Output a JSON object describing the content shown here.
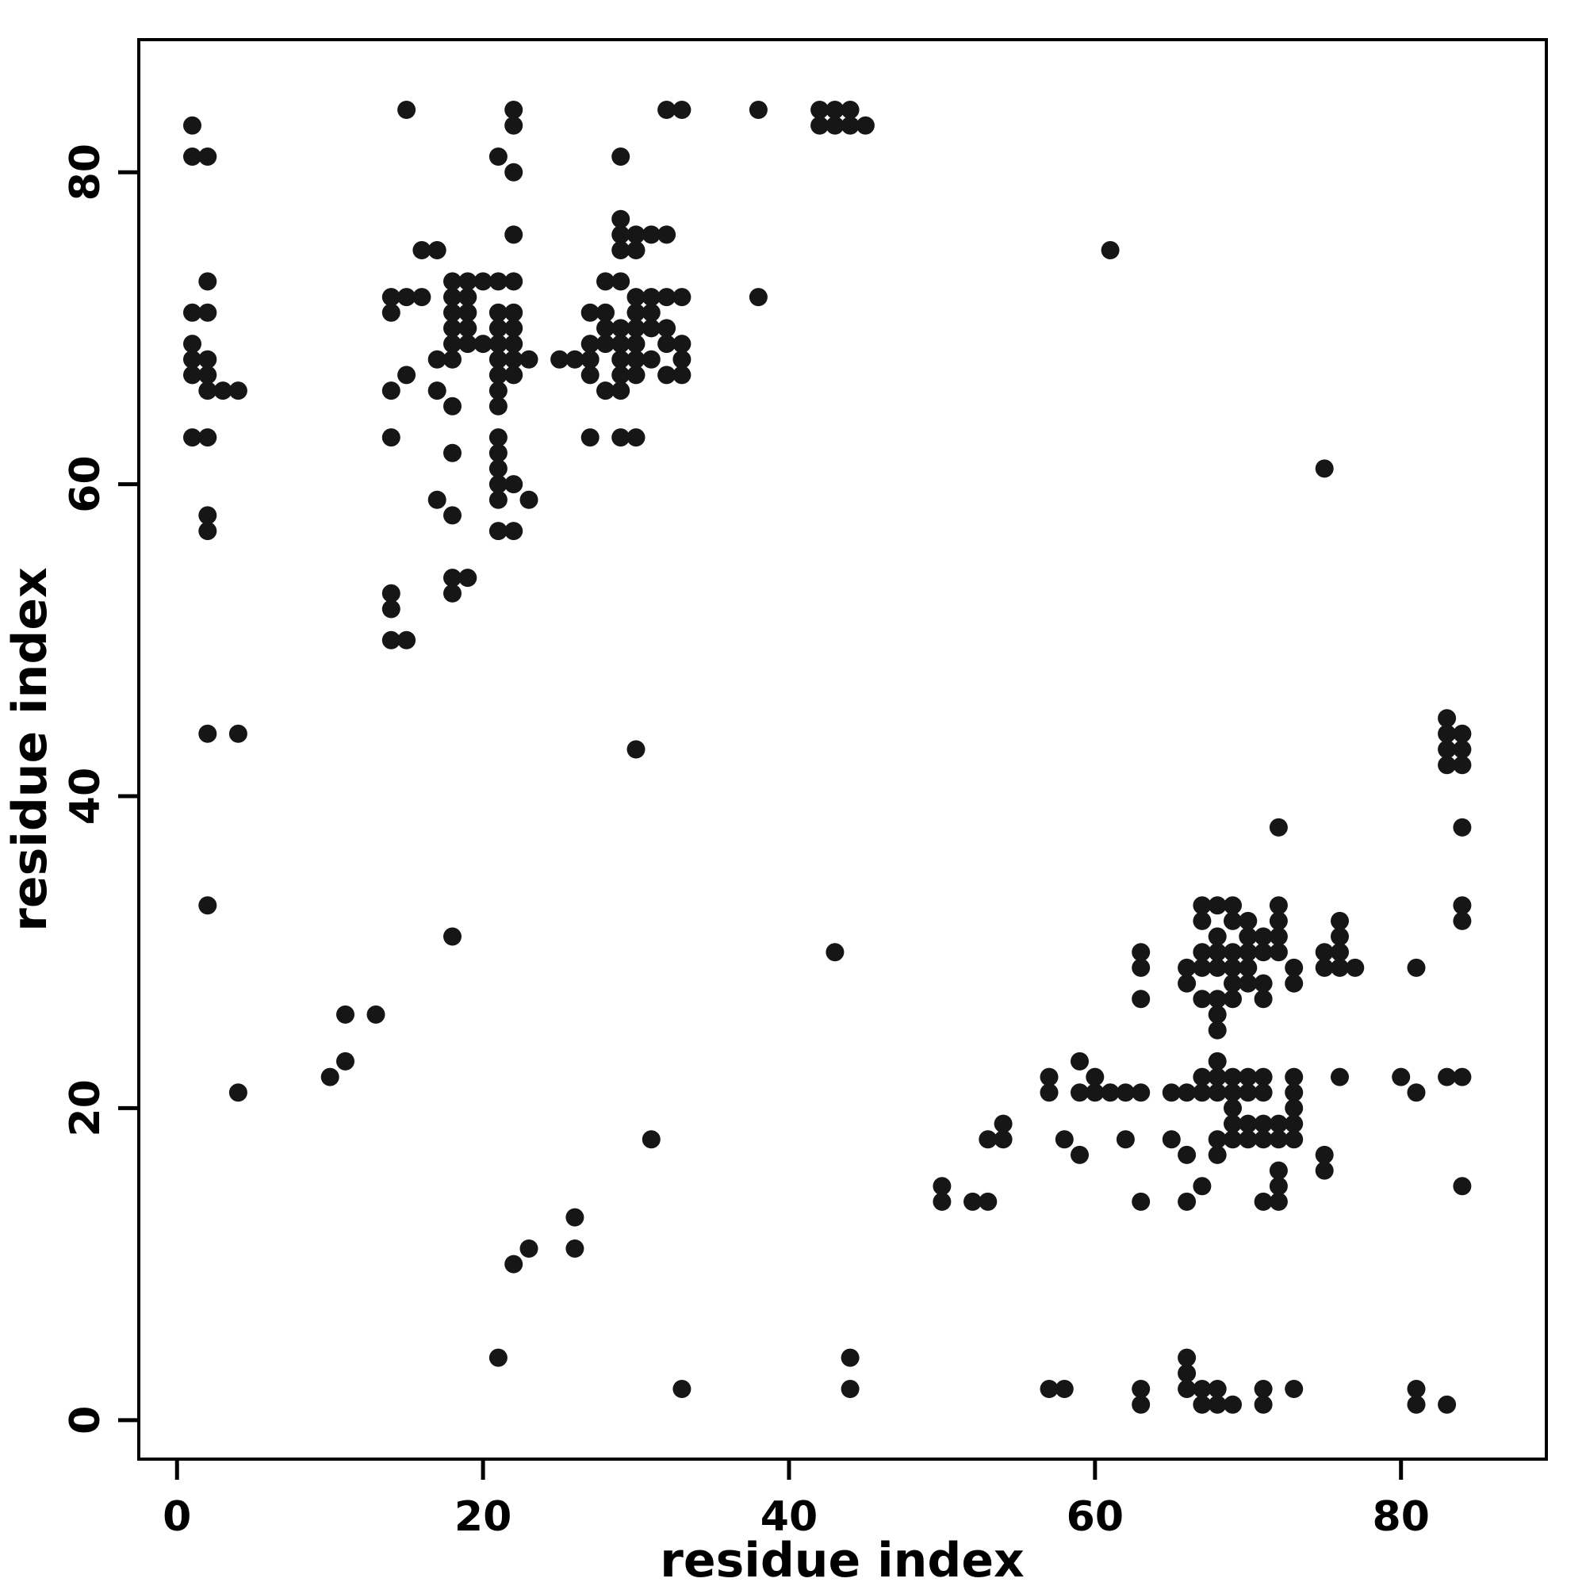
{
  "chart_data": {
    "type": "scatter",
    "title": "",
    "xlabel": "residue index",
    "ylabel": "residue index",
    "xlim": [
      -2.5,
      89.5
    ],
    "ylim": [
      -2.5,
      88.5
    ],
    "xticks": [
      0,
      20,
      40,
      60,
      80
    ],
    "yticks": [
      0,
      20,
      40,
      60,
      80
    ],
    "grid": false,
    "legend": "none",
    "point_color": "#161616",
    "point_radius_px": 11.5,
    "description": "Protein residue contact map; symmetric scatter of contacting residue index pairs",
    "points": [
      [
        1,
        83
      ],
      [
        1,
        81
      ],
      [
        2,
        81
      ],
      [
        2,
        73
      ],
      [
        1,
        71
      ],
      [
        2,
        71
      ],
      [
        1,
        69
      ],
      [
        1,
        68
      ],
      [
        2,
        68
      ],
      [
        1,
        67
      ],
      [
        2,
        67
      ],
      [
        2,
        66
      ],
      [
        3,
        66
      ],
      [
        4,
        66
      ],
      [
        1,
        63
      ],
      [
        2,
        63
      ],
      [
        2,
        58
      ],
      [
        2,
        57
      ],
      [
        2,
        44
      ],
      [
        4,
        44
      ],
      [
        2,
        33
      ],
      [
        4,
        21
      ],
      [
        10,
        22
      ],
      [
        11,
        23
      ],
      [
        11,
        26
      ],
      [
        13,
        26
      ],
      [
        18,
        31
      ],
      [
        30,
        43
      ],
      [
        15,
        84
      ],
      [
        22,
        84
      ],
      [
        22,
        83
      ],
      [
        21,
        81
      ],
      [
        22,
        80
      ],
      [
        16,
        75
      ],
      [
        17,
        75
      ],
      [
        22,
        76
      ],
      [
        18,
        73
      ],
      [
        19,
        73
      ],
      [
        20,
        73
      ],
      [
        21,
        73
      ],
      [
        22,
        73
      ],
      [
        14,
        72
      ],
      [
        15,
        72
      ],
      [
        16,
        72
      ],
      [
        18,
        72
      ],
      [
        19,
        72
      ],
      [
        14,
        71
      ],
      [
        18,
        71
      ],
      [
        19,
        71
      ],
      [
        21,
        71
      ],
      [
        22,
        71
      ],
      [
        18,
        70
      ],
      [
        19,
        70
      ],
      [
        21,
        70
      ],
      [
        22,
        70
      ],
      [
        18,
        69
      ],
      [
        19,
        69
      ],
      [
        20,
        69
      ],
      [
        21,
        69
      ],
      [
        22,
        69
      ],
      [
        17,
        68
      ],
      [
        18,
        68
      ],
      [
        21,
        68
      ],
      [
        22,
        68
      ],
      [
        23,
        68
      ],
      [
        25,
        68
      ],
      [
        15,
        67
      ],
      [
        21,
        67
      ],
      [
        22,
        67
      ],
      [
        14,
        66
      ],
      [
        17,
        66
      ],
      [
        21,
        66
      ],
      [
        18,
        65
      ],
      [
        21,
        65
      ],
      [
        14,
        63
      ],
      [
        21,
        63
      ],
      [
        18,
        62
      ],
      [
        21,
        62
      ],
      [
        21,
        61
      ],
      [
        21,
        60
      ],
      [
        22,
        60
      ],
      [
        17,
        59
      ],
      [
        21,
        59
      ],
      [
        23,
        59
      ],
      [
        18,
        58
      ],
      [
        21,
        57
      ],
      [
        22,
        57
      ],
      [
        18,
        54
      ],
      [
        19,
        54
      ],
      [
        14,
        53
      ],
      [
        18,
        53
      ],
      [
        14,
        52
      ],
      [
        14,
        50
      ],
      [
        15,
        50
      ],
      [
        29,
        77
      ],
      [
        29,
        76
      ],
      [
        30,
        76
      ],
      [
        31,
        76
      ],
      [
        32,
        76
      ],
      [
        29,
        75
      ],
      [
        30,
        75
      ],
      [
        29,
        81
      ],
      [
        28,
        73
      ],
      [
        29,
        73
      ],
      [
        30,
        72
      ],
      [
        31,
        72
      ],
      [
        32,
        72
      ],
      [
        33,
        72
      ],
      [
        27,
        71
      ],
      [
        28,
        71
      ],
      [
        30,
        71
      ],
      [
        31,
        71
      ],
      [
        28,
        70
      ],
      [
        29,
        70
      ],
      [
        30,
        70
      ],
      [
        31,
        70
      ],
      [
        32,
        70
      ],
      [
        27,
        69
      ],
      [
        28,
        69
      ],
      [
        29,
        69
      ],
      [
        30,
        69
      ],
      [
        32,
        69
      ],
      [
        33,
        69
      ],
      [
        26,
        68
      ],
      [
        27,
        68
      ],
      [
        29,
        68
      ],
      [
        30,
        68
      ],
      [
        31,
        68
      ],
      [
        33,
        68
      ],
      [
        27,
        67
      ],
      [
        29,
        67
      ],
      [
        30,
        67
      ],
      [
        32,
        67
      ],
      [
        33,
        67
      ],
      [
        28,
        66
      ],
      [
        29,
        66
      ],
      [
        27,
        63
      ],
      [
        29,
        63
      ],
      [
        30,
        63
      ],
      [
        32,
        84
      ],
      [
        33,
        84
      ],
      [
        38,
        84
      ],
      [
        42,
        84
      ],
      [
        43,
        84
      ],
      [
        44,
        84
      ],
      [
        42,
        83
      ],
      [
        43,
        83
      ],
      [
        44,
        83
      ],
      [
        45,
        83
      ],
      [
        38,
        72
      ],
      [
        61,
        75
      ],
      [
        83,
        1
      ],
      [
        81,
        1
      ],
      [
        81,
        2
      ],
      [
        73,
        2
      ],
      [
        71,
        1
      ],
      [
        71,
        2
      ],
      [
        69,
        1
      ],
      [
        68,
        1
      ],
      [
        68,
        2
      ],
      [
        67,
        1
      ],
      [
        67,
        2
      ],
      [
        66,
        2
      ],
      [
        66,
        3
      ],
      [
        66,
        4
      ],
      [
        63,
        1
      ],
      [
        63,
        2
      ],
      [
        58,
        2
      ],
      [
        57,
        2
      ],
      [
        44,
        2
      ],
      [
        44,
        4
      ],
      [
        33,
        2
      ],
      [
        21,
        4
      ],
      [
        22,
        10
      ],
      [
        23,
        11
      ],
      [
        26,
        11
      ],
      [
        26,
        13
      ],
      [
        31,
        18
      ],
      [
        43,
        30
      ],
      [
        84,
        15
      ],
      [
        84,
        22
      ],
      [
        83,
        22
      ],
      [
        81,
        21
      ],
      [
        80,
        22
      ],
      [
        75,
        16
      ],
      [
        75,
        17
      ],
      [
        76,
        22
      ],
      [
        73,
        18
      ],
      [
        73,
        19
      ],
      [
        73,
        20
      ],
      [
        73,
        21
      ],
      [
        73,
        22
      ],
      [
        72,
        14
      ],
      [
        72,
        15
      ],
      [
        72,
        16
      ],
      [
        72,
        18
      ],
      [
        72,
        19
      ],
      [
        71,
        14
      ],
      [
        71,
        18
      ],
      [
        71,
        19
      ],
      [
        71,
        21
      ],
      [
        71,
        22
      ],
      [
        70,
        18
      ],
      [
        70,
        19
      ],
      [
        70,
        21
      ],
      [
        70,
        22
      ],
      [
        69,
        18
      ],
      [
        69,
        19
      ],
      [
        69,
        20
      ],
      [
        69,
        21
      ],
      [
        69,
        22
      ],
      [
        68,
        17
      ],
      [
        68,
        18
      ],
      [
        68,
        21
      ],
      [
        68,
        22
      ],
      [
        68,
        23
      ],
      [
        68,
        25
      ],
      [
        67,
        15
      ],
      [
        67,
        21
      ],
      [
        67,
        22
      ],
      [
        66,
        14
      ],
      [
        66,
        17
      ],
      [
        66,
        21
      ],
      [
        65,
        18
      ],
      [
        65,
        21
      ],
      [
        63,
        14
      ],
      [
        63,
        21
      ],
      [
        62,
        18
      ],
      [
        62,
        21
      ],
      [
        61,
        21
      ],
      [
        60,
        21
      ],
      [
        60,
        22
      ],
      [
        59,
        17
      ],
      [
        59,
        21
      ],
      [
        59,
        23
      ],
      [
        58,
        18
      ],
      [
        57,
        21
      ],
      [
        57,
        22
      ],
      [
        54,
        18
      ],
      [
        54,
        19
      ],
      [
        53,
        14
      ],
      [
        53,
        18
      ],
      [
        52,
        14
      ],
      [
        50,
        14
      ],
      [
        50,
        15
      ],
      [
        77,
        29
      ],
      [
        76,
        29
      ],
      [
        76,
        30
      ],
      [
        76,
        31
      ],
      [
        76,
        32
      ],
      [
        75,
        29
      ],
      [
        75,
        30
      ],
      [
        81,
        29
      ],
      [
        73,
        28
      ],
      [
        73,
        29
      ],
      [
        72,
        30
      ],
      [
        72,
        31
      ],
      [
        72,
        32
      ],
      [
        72,
        33
      ],
      [
        71,
        27
      ],
      [
        71,
        28
      ],
      [
        71,
        30
      ],
      [
        71,
        31
      ],
      [
        70,
        28
      ],
      [
        70,
        29
      ],
      [
        70,
        30
      ],
      [
        70,
        31
      ],
      [
        70,
        32
      ],
      [
        69,
        27
      ],
      [
        69,
        28
      ],
      [
        69,
        29
      ],
      [
        69,
        30
      ],
      [
        69,
        32
      ],
      [
        69,
        33
      ],
      [
        68,
        26
      ],
      [
        68,
        27
      ],
      [
        68,
        29
      ],
      [
        68,
        30
      ],
      [
        68,
        31
      ],
      [
        68,
        33
      ],
      [
        67,
        27
      ],
      [
        67,
        29
      ],
      [
        67,
        30
      ],
      [
        67,
        32
      ],
      [
        67,
        33
      ],
      [
        66,
        28
      ],
      [
        66,
        29
      ],
      [
        63,
        27
      ],
      [
        63,
        29
      ],
      [
        63,
        30
      ],
      [
        84,
        32
      ],
      [
        84,
        33
      ],
      [
        84,
        38
      ],
      [
        84,
        42
      ],
      [
        84,
        43
      ],
      [
        84,
        44
      ],
      [
        83,
        42
      ],
      [
        83,
        43
      ],
      [
        83,
        44
      ],
      [
        83,
        45
      ],
      [
        72,
        38
      ],
      [
        75,
        61
      ]
    ]
  }
}
